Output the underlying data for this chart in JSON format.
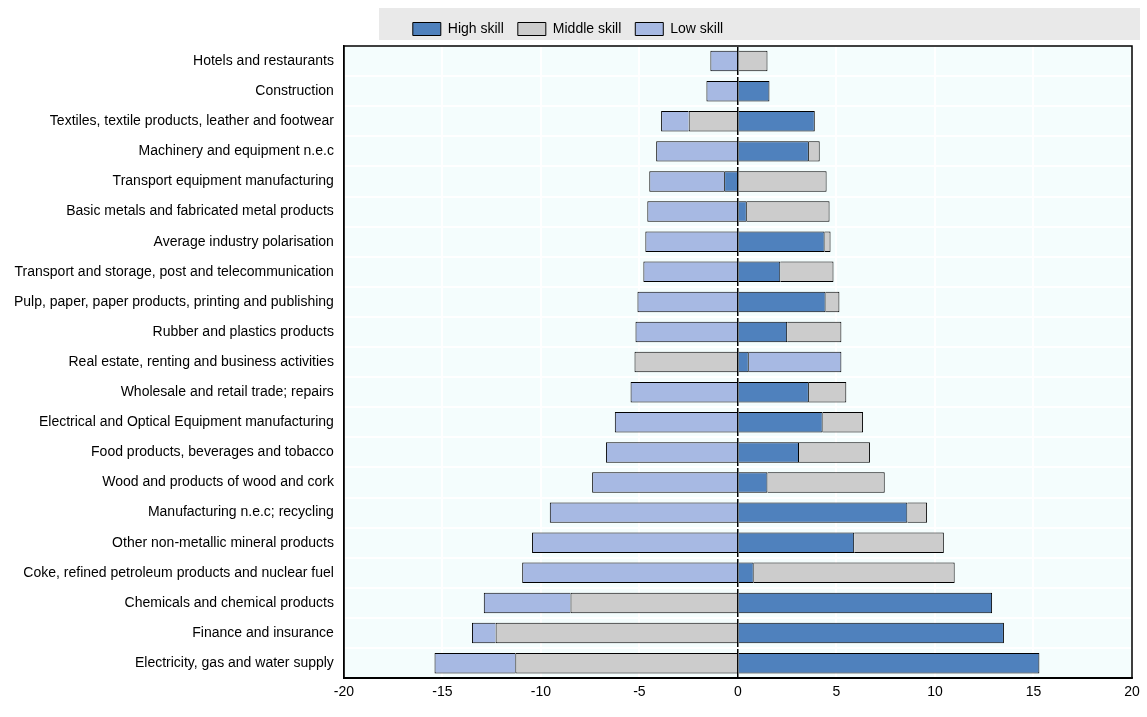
{
  "chart_data": {
    "type": "bar",
    "orientation": "horizontal",
    "stacked": true,
    "categories": [
      "Hotels and restaurants",
      "Construction",
      "Textiles, textile products, leather and footwear",
      "Machinery and equipment n.e.c",
      "Transport equipment manufacturing",
      "Basic metals and fabricated metal products",
      "Average industry polarisation",
      "Transport and storage, post and telecommunication",
      "Pulp, paper, paper products, printing and publishing",
      "Rubber and plastics products",
      "Real estate, renting and business activities",
      "Wholesale and retail trade; repairs",
      "Electrical and Optical Equipment manufacturing",
      "Food products, beverages and tobacco",
      "Wood and products of wood and cork",
      "Manufacturing n.e.c; recycling",
      "Other non-metallic mineral products",
      "Coke, refined petroleum products and nuclear fuel",
      "Chemicals and chemical products",
      "Finance and insurance",
      "Electricity, gas and water supply"
    ],
    "series": [
      {
        "name": "High skill",
        "color": "#4f81bd",
        "values": [
          0,
          1.6,
          3.9,
          3.6,
          -0.7,
          0.45,
          4.4,
          2.15,
          4.45,
          2.5,
          0.55,
          3.6,
          4.3,
          3.1,
          1.5,
          8.6,
          5.9,
          0.8,
          12.9,
          13.5,
          15.3
        ]
      },
      {
        "name": "Middle skill",
        "color": "#cccccc",
        "values": [
          1.5,
          0,
          -2.5,
          0.55,
          4.5,
          4.2,
          0.3,
          2.7,
          0.7,
          2.75,
          -5.25,
          1.9,
          2.05,
          3.6,
          5.95,
          1.0,
          4.55,
          10.2,
          -8.5,
          -12.3,
          -11.3
        ]
      },
      {
        "name": "Low skill",
        "color": "#a7b9e3",
        "values": [
          -1.4,
          -1.6,
          -1.4,
          -4.15,
          -3.8,
          -4.6,
          -4.7,
          -4.8,
          -5.1,
          -5.2,
          4.7,
          -5.45,
          -6.25,
          -6.7,
          -7.4,
          -9.55,
          -10.45,
          -10.95,
          -4.4,
          -1.2,
          -4.1
        ]
      }
    ],
    "xlim": [
      -20,
      20
    ],
    "xticks": [
      -20,
      -15,
      -10,
      -5,
      0,
      5,
      10,
      15,
      20
    ],
    "grid": true,
    "legend": "top"
  }
}
